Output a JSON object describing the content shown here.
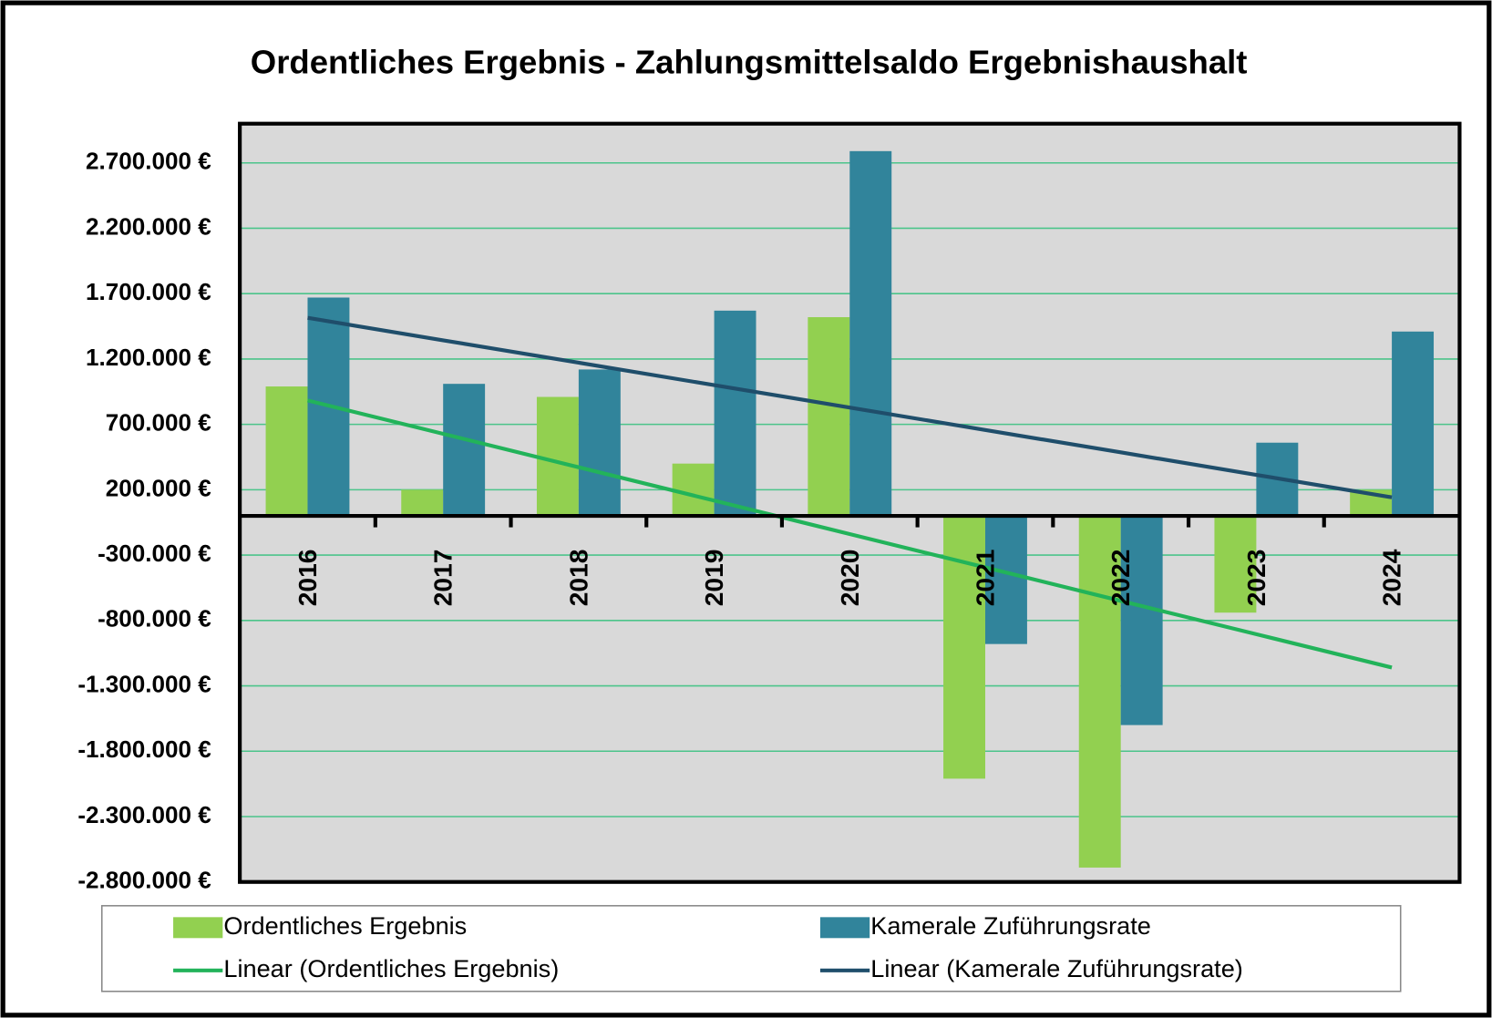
{
  "chart_data": {
    "type": "bar",
    "title": "Ordentliches Ergebnis - Zahlungsmittelsaldo Ergebnishaushalt",
    "categories": [
      "2016",
      "2017",
      "2018",
      "2019",
      "2020",
      "2021",
      "2022",
      "2023",
      "2024"
    ],
    "series": [
      {
        "name": "Ordentliches Ergebnis",
        "type": "bar",
        "color": "#92d050",
        "values": [
          990000,
          200000,
          910000,
          400000,
          1520000,
          -2010000,
          -2690000,
          -740000,
          200000
        ]
      },
      {
        "name": "Kamerale Zuführungsrate",
        "type": "bar",
        "color": "#31849b",
        "values": [
          1670000,
          1010000,
          1120000,
          1570000,
          2790000,
          -980000,
          -1600000,
          560000,
          1410000
        ]
      },
      {
        "name": "Linear (Ordentliches Ergebnis)",
        "type": "line",
        "color": "#22b35a",
        "values": [
          883000,
          628000,
          372000,
          117000,
          -139000,
          -394000,
          -650000,
          -905000,
          -1160000
        ]
      },
      {
        "name": "Linear (Kamerale Zuführungsrate)",
        "type": "line",
        "color": "#1f4e6b",
        "values": [
          1515000,
          1343000,
          1172000,
          1000000,
          829000,
          657000,
          486000,
          314000,
          142000
        ]
      }
    ],
    "ylim": [
      -2800000,
      3000000
    ],
    "yticks": [
      {
        "value": -2800000,
        "label": "-2.800.000 €"
      },
      {
        "value": -2300000,
        "label": "-2.300.000 €"
      },
      {
        "value": -1800000,
        "label": "-1.800.000 €"
      },
      {
        "value": -1300000,
        "label": "-1.300.000 €"
      },
      {
        "value": -800000,
        "label": "-800.000 €"
      },
      {
        "value": -300000,
        "label": "-300.000 €"
      },
      {
        "value": 200000,
        "label": "200.000 €"
      },
      {
        "value": 700000,
        "label": "700.000 €"
      },
      {
        "value": 1200000,
        "label": "1.200.000 €"
      },
      {
        "value": 1700000,
        "label": "1.700.000 €"
      },
      {
        "value": 2200000,
        "label": "2.200.000 €"
      },
      {
        "value": 2700000,
        "label": "2.700.000 €"
      }
    ],
    "grid": true,
    "legend": "bottom"
  }
}
